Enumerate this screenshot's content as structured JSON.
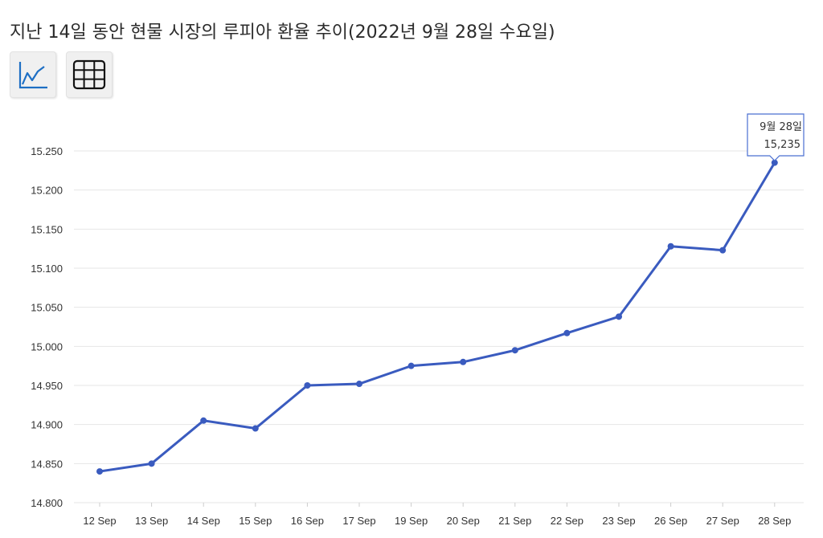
{
  "page": {
    "title": "지난 14일 동안 현물 시장의 루피아 환율 추이(2022년 9월 28일 수요일)"
  },
  "toolbar": {
    "line_view_icon": "line-chart-icon",
    "table_view_icon": "table-grid-icon"
  },
  "colors": {
    "line": "#3a5bbf",
    "point": "#3a5bbf",
    "grid": "#e6e6e6",
    "tooltip_border": "#4a6fd1",
    "icon_line": "#1e6fc4"
  },
  "chart_data": {
    "type": "line",
    "categories": [
      "12 Sep",
      "13 Sep",
      "14 Sep",
      "15 Sep",
      "16 Sep",
      "17 Sep",
      "19 Sep",
      "20 Sep",
      "21 Sep",
      "22 Sep",
      "23 Sep",
      "26 Sep",
      "27 Sep",
      "28 Sep"
    ],
    "values": [
      14840,
      14850,
      14905,
      14895,
      14950,
      14952,
      14975,
      14980,
      14995,
      15017,
      15038,
      15128,
      15123,
      15235
    ],
    "ylim": [
      14800,
      15250
    ],
    "yticks": [
      "14.800",
      "14.850",
      "14.900",
      "14.950",
      "15.000",
      "15.050",
      "15.100",
      "15.150",
      "15.200",
      "15.250"
    ],
    "ytick_values": [
      14800,
      14850,
      14900,
      14950,
      15000,
      15050,
      15100,
      15150,
      15200,
      15250
    ],
    "grid": true,
    "tooltip": {
      "date": "9월 28일",
      "value": "15,235"
    }
  }
}
